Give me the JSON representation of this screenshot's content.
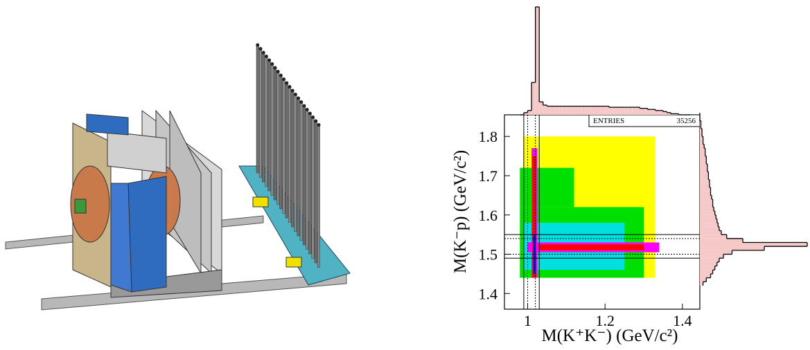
{
  "chart_data": {
    "type": "hist2d",
    "xlabel": "M(K⁺K⁻) (GeV/c²)",
    "ylabel": "M(K⁻p) (GeV/c²)",
    "xlim": [
      0.94,
      1.445
    ],
    "ylim": [
      1.36,
      1.855
    ],
    "xticks": [
      1,
      1.2,
      1.4
    ],
    "yticks": [
      1.4,
      1.5,
      1.6,
      1.7,
      1.8
    ],
    "stats": {
      "label": "ENTRIES",
      "value": 35256
    },
    "regions": [
      {
        "x": [
          0.99,
          1.33
        ],
        "y": [
          1.44,
          1.8
        ],
        "color": "#ffff00"
      },
      {
        "x": [
          0.98,
          1.3
        ],
        "y": [
          1.44,
          1.62
        ],
        "color": "#00e000"
      },
      {
        "x": [
          0.98,
          1.12
        ],
        "y": [
          1.62,
          1.72
        ],
        "color": "#00e000"
      },
      {
        "x": [
          0.99,
          1.25
        ],
        "y": [
          1.46,
          1.58
        ],
        "color": "#00e0e0"
      },
      {
        "x": [
          1.0,
          1.34
        ],
        "y": [
          1.505,
          1.53
        ],
        "color": "#ff00ff"
      },
      {
        "x": [
          1.03,
          1.3
        ],
        "y": [
          1.51,
          1.525
        ],
        "color": "#ff0000"
      },
      {
        "x": [
          1.01,
          1.025
        ],
        "y": [
          1.44,
          1.77
        ],
        "color": "#ff00ff"
      },
      {
        "x": [
          1.012,
          1.022
        ],
        "y": [
          1.44,
          1.75
        ],
        "color": "#ff0000"
      },
      {
        "x": [
          1.015,
          1.02
        ],
        "y": [
          1.45,
          1.55
        ],
        "color": "#0000ff"
      }
    ],
    "cuts": {
      "x_solid": [
        0.99,
        1.03
      ],
      "x_dotted": [
        1.0,
        1.02
      ],
      "y_solid": [
        1.49,
        1.55
      ],
      "y_dotted": [
        1.5,
        1.54
      ]
    },
    "x_projection": {
      "color": "#f6c9c9",
      "bins": [
        0.98,
        0.99,
        1.0,
        1.01,
        1.02,
        1.03,
        1.04,
        1.05,
        1.06,
        1.07,
        1.08,
        1.09,
        1.1,
        1.11,
        1.12,
        1.13,
        1.14,
        1.15,
        1.16,
        1.17,
        1.18,
        1.19,
        1.2,
        1.21,
        1.22,
        1.23,
        1.24,
        1.25,
        1.26,
        1.27,
        1.28,
        1.29,
        1.3,
        1.31,
        1.32,
        1.33,
        1.34,
        1.35,
        1.36,
        1.37,
        1.38,
        1.39,
        1.4,
        1.41,
        1.42
      ],
      "counts": [
        0,
        2,
        4,
        30,
        100,
        12,
        9,
        8,
        8,
        8,
        8,
        8,
        8,
        8,
        8,
        8,
        8,
        8,
        8,
        8,
        8,
        8,
        8,
        7,
        7,
        7,
        7,
        7,
        7,
        7,
        7,
        6,
        6,
        5,
        5,
        4,
        4,
        3,
        2,
        1,
        1,
        0,
        0,
        0
      ]
    },
    "y_projection": {
      "color": "#f6c9c9",
      "bins": [
        1.42,
        1.43,
        1.44,
        1.45,
        1.46,
        1.47,
        1.48,
        1.49,
        1.5,
        1.51,
        1.52,
        1.53,
        1.54,
        1.55,
        1.56,
        1.57,
        1.58,
        1.59,
        1.6,
        1.61,
        1.62,
        1.63,
        1.64,
        1.65,
        1.66,
        1.67,
        1.68,
        1.69,
        1.7,
        1.71,
        1.72,
        1.73,
        1.74,
        1.75,
        1.76,
        1.77,
        1.78,
        1.79,
        1.8,
        1.81,
        1.82,
        1.83,
        1.84,
        1.85,
        1.86
      ],
      "counts": [
        3,
        6,
        10,
        12,
        14,
        16,
        18,
        22,
        30,
        60,
        100,
        40,
        25,
        20,
        18,
        17,
        16,
        15,
        14,
        13,
        12,
        12,
        11,
        10,
        10,
        9,
        9,
        8,
        8,
        7,
        7,
        6,
        6,
        5,
        5,
        4,
        3,
        3,
        2,
        2,
        1,
        1,
        0,
        0
      ]
    }
  }
}
